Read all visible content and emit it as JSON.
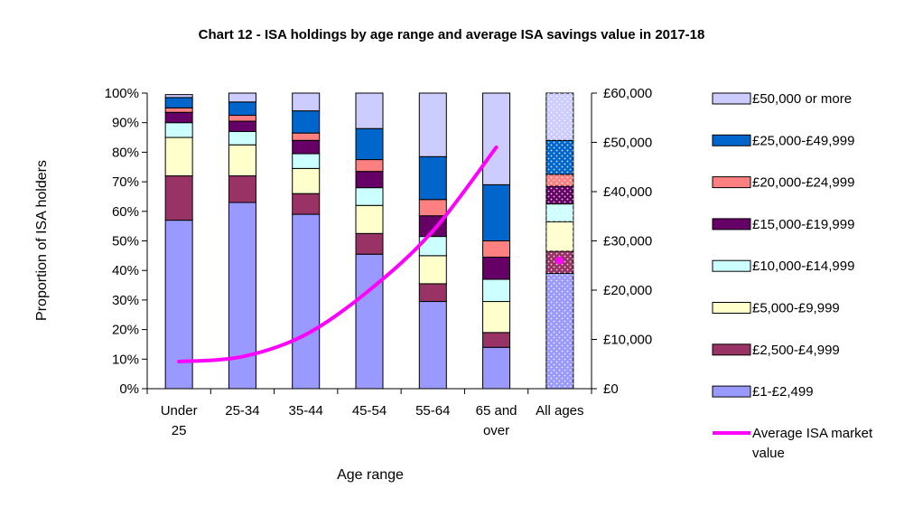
{
  "chart_data": {
    "type": "bar",
    "stacked": true,
    "title": "Chart 12 - ISA holdings by age range and average ISA savings value in 2017-18",
    "xlabel": "Age range",
    "ylabel": "Proportion of ISA holders",
    "ylim": [
      0,
      100
    ],
    "y2lim": [
      0,
      60000
    ],
    "y_ticks": [
      "0%",
      "10%",
      "20%",
      "30%",
      "40%",
      "50%",
      "60%",
      "70%",
      "80%",
      "90%",
      "100%"
    ],
    "y2_ticks": [
      "£0",
      "£10,000",
      "£20,000",
      "£30,000",
      "£40,000",
      "£50,000",
      "£60,000"
    ],
    "categories": [
      [
        "Under",
        "25"
      ],
      [
        "25-34"
      ],
      [
        "35-44"
      ],
      [
        "45-54"
      ],
      [
        "55-64"
      ],
      [
        "65 and",
        "over"
      ],
      [
        "All ages"
      ]
    ],
    "series": [
      {
        "name": "£1-£2,499",
        "color": "#9999ff",
        "values": [
          57,
          63,
          59,
          45.5,
          29.5,
          14,
          39
        ]
      },
      {
        "name": "£2,500-£4,999",
        "color": "#993366",
        "values": [
          15,
          9,
          7,
          7,
          6,
          5,
          7.5
        ]
      },
      {
        "name": "£5,000-£9,999",
        "color": "#ffffcc",
        "values": [
          13,
          10.5,
          8.5,
          9.5,
          9.5,
          10.5,
          10
        ]
      },
      {
        "name": "£10,000-£14,999",
        "color": "#ccffff",
        "values": [
          5,
          4.5,
          5,
          6,
          6.5,
          7.5,
          6
        ]
      },
      {
        "name": "£15,000-£19,999",
        "color": "#660066",
        "values": [
          3.5,
          3.5,
          4.5,
          5.5,
          7,
          7.5,
          6
        ]
      },
      {
        "name": "£20,000-£24,999",
        "color": "#ff8080",
        "values": [
          1.5,
          2,
          2.5,
          4,
          5.5,
          5.5,
          4
        ]
      },
      {
        "name": "£25,000-£49,999",
        "color": "#0066cc",
        "values": [
          3.5,
          4.5,
          7.5,
          10.5,
          14.5,
          19,
          11.5
        ]
      },
      {
        "name": "£50,000 or more",
        "color": "#ccccff",
        "values": [
          1,
          3,
          6,
          12,
          21.5,
          31,
          16
        ]
      }
    ],
    "line_series": {
      "name": "Average ISA market value",
      "color": "#ff00ff",
      "axis": "secondary",
      "values": [
        5500,
        6500,
        11000,
        20000,
        32000,
        49000,
        26000
      ],
      "last_as_marker": true
    },
    "legend_position": "right",
    "grid": false
  }
}
